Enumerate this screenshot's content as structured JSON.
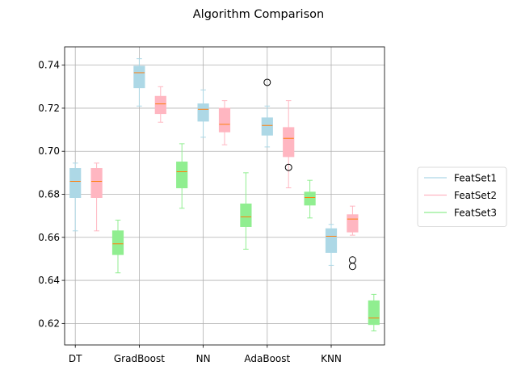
{
  "chart_data": {
    "type": "box",
    "title": "Algorithm Comparison",
    "xlabel": "",
    "ylabel": "",
    "categories": [
      "DT",
      "GradBoost",
      "NN",
      "AdaBoost",
      "KNN"
    ],
    "ylim": [
      0.61,
      0.7485
    ],
    "yticks": [
      0.62,
      0.64,
      0.66,
      0.68,
      0.7,
      0.72,
      0.74
    ],
    "ytick_labels": [
      "0.62",
      "0.64",
      "0.66",
      "0.68",
      "0.70",
      "0.72",
      "0.74"
    ],
    "grid": true,
    "legend_position": "right",
    "median_color": "#ff7f0e",
    "series": [
      {
        "name": "FeatSet1",
        "color": "#add8e6",
        "boxes": [
          {
            "whislo": 0.663,
            "q1": 0.6785,
            "med": 0.686,
            "q3": 0.692,
            "whishi": 0.6945,
            "fliers": []
          },
          {
            "whislo": 0.721,
            "q1": 0.7295,
            "med": 0.7365,
            "q3": 0.7395,
            "whishi": 0.743,
            "fliers": []
          },
          {
            "whislo": 0.7065,
            "q1": 0.714,
            "med": 0.7195,
            "q3": 0.722,
            "whishi": 0.7285,
            "fliers": []
          },
          {
            "whislo": 0.702,
            "q1": 0.7075,
            "med": 0.712,
            "q3": 0.7155,
            "whishi": 0.721,
            "fliers": [
              0.732
            ]
          },
          {
            "whislo": 0.647,
            "q1": 0.653,
            "med": 0.6605,
            "q3": 0.664,
            "whishi": 0.666,
            "fliers": []
          }
        ]
      },
      {
        "name": "FeatSet2",
        "color": "#ffb6c1",
        "boxes": [
          {
            "whislo": 0.663,
            "q1": 0.6785,
            "med": 0.686,
            "q3": 0.692,
            "whishi": 0.6945,
            "fliers": []
          },
          {
            "whislo": 0.7135,
            "q1": 0.7175,
            "med": 0.722,
            "q3": 0.7255,
            "whishi": 0.73,
            "fliers": []
          },
          {
            "whislo": 0.703,
            "q1": 0.709,
            "med": 0.7125,
            "q3": 0.72,
            "whishi": 0.7235,
            "fliers": []
          },
          {
            "whislo": 0.683,
            "q1": 0.6975,
            "med": 0.706,
            "q3": 0.711,
            "whishi": 0.7235,
            "fliers": [
              0.6925
            ]
          },
          {
            "whislo": 0.661,
            "q1": 0.6625,
            "med": 0.6685,
            "q3": 0.6705,
            "whishi": 0.6745,
            "fliers": [
              0.6495,
              0.6465
            ]
          }
        ]
      },
      {
        "name": "FeatSet3",
        "color": "#90ee90",
        "boxes": [
          {
            "whislo": 0.6435,
            "q1": 0.652,
            "med": 0.657,
            "q3": 0.663,
            "whishi": 0.668,
            "fliers": []
          },
          {
            "whislo": 0.6735,
            "q1": 0.683,
            "med": 0.6905,
            "q3": 0.695,
            "whishi": 0.7035,
            "fliers": []
          },
          {
            "whislo": 0.6545,
            "q1": 0.665,
            "med": 0.6695,
            "q3": 0.6755,
            "whishi": 0.69,
            "fliers": []
          },
          {
            "whislo": 0.669,
            "q1": 0.675,
            "med": 0.6785,
            "q3": 0.681,
            "whishi": 0.6865,
            "fliers": []
          },
          {
            "whislo": 0.6165,
            "q1": 0.6195,
            "med": 0.6225,
            "q3": 0.6305,
            "whishi": 0.6335,
            "fliers": []
          }
        ]
      }
    ]
  }
}
